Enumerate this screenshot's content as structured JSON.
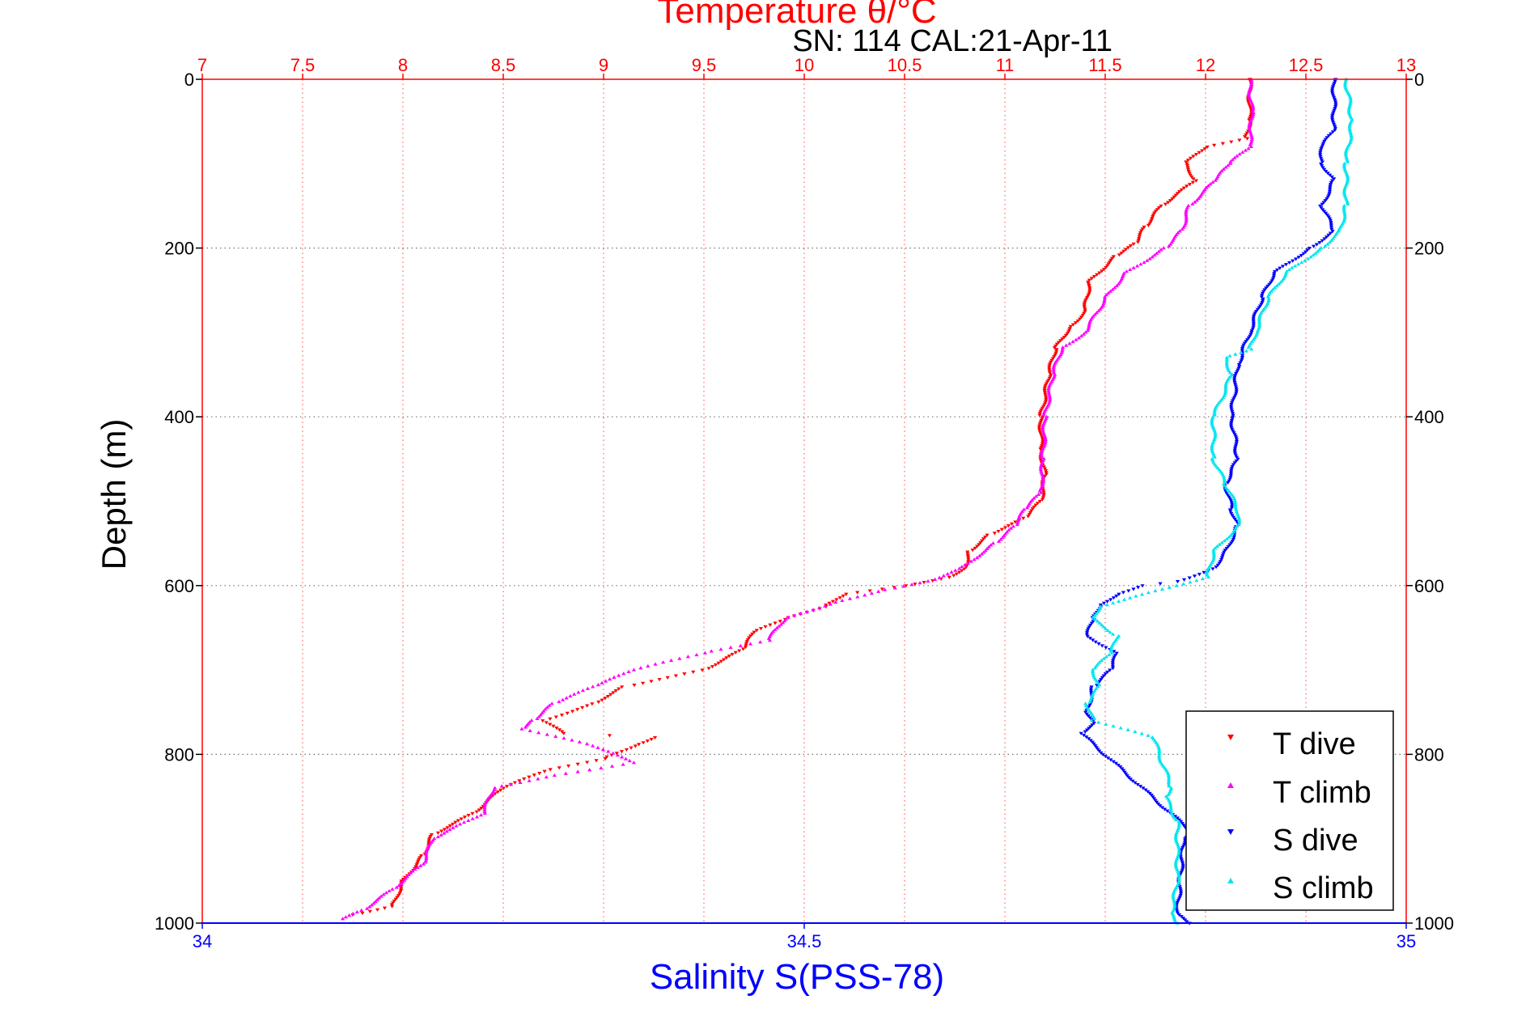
{
  "chart_data": {
    "type": "scatter",
    "title": "Temperature θ/°C",
    "subtitle": "SN: 114  CAL:21-Apr-11",
    "ylabel": "Depth (m)",
    "xlabel": "Salinity S(PSS-78)",
    "ylim": [
      0,
      1000
    ],
    "y_reversed": true,
    "y_ticks": [
      "0",
      "200",
      "400",
      "600",
      "800",
      "1000"
    ],
    "temperature_axis": {
      "position": "top",
      "range": [
        7,
        13
      ],
      "ticks": [
        "7",
        "7.5",
        "8",
        "8.5",
        "9",
        "9.5",
        "10",
        "10.5",
        "11",
        "11.5",
        "12",
        "12.5",
        "13"
      ],
      "color": "#ff0000"
    },
    "salinity_axis": {
      "position": "bottom",
      "range": [
        34,
        35
      ],
      "ticks": [
        "34",
        "34.5",
        "35"
      ],
      "color": "#0000ff"
    },
    "grid": true,
    "legend_position": "bottom-right",
    "series": [
      {
        "name": "T dive",
        "axis": "temperature",
        "color": "#ff0000",
        "marker": "triangle-down",
        "depth": [
          0,
          50,
          70,
          80,
          100,
          120,
          150,
          175,
          195,
          210,
          240,
          275,
          295,
          320,
          350,
          400,
          440,
          470,
          500,
          520,
          540,
          560,
          580,
          590,
          600,
          610,
          625,
          640,
          655,
          675,
          700,
          720,
          740,
          760,
          775,
          780,
          790,
          805,
          820,
          840,
          870,
          895,
          920,
          950,
          980,
          990
        ],
        "values": [
          12.22,
          12.22,
          12.2,
          12.0,
          11.9,
          11.95,
          11.78,
          11.7,
          11.65,
          11.55,
          11.42,
          11.4,
          11.32,
          11.25,
          11.22,
          11.18,
          11.18,
          11.2,
          11.18,
          11.1,
          10.92,
          10.82,
          10.8,
          10.72,
          10.5,
          10.2,
          10.1,
          9.9,
          9.75,
          9.7,
          9.5,
          9.1,
          8.95,
          8.7,
          8.8,
          9.25,
          9.15,
          9.0,
          8.7,
          8.5,
          8.35,
          8.15,
          8.1,
          8.0,
          7.95,
          7.75
        ]
      },
      {
        "name": "T climb",
        "axis": "temperature",
        "color": "#ff00ff",
        "marker": "triangle-up",
        "depth": [
          0,
          40,
          80,
          100,
          120,
          150,
          180,
          200,
          230,
          260,
          300,
          320,
          350,
          400,
          450,
          490,
          510,
          530,
          550,
          580,
          595,
          605,
          620,
          640,
          665,
          680,
          700,
          720,
          740,
          760,
          770,
          790,
          810,
          825,
          840,
          870,
          900,
          930,
          960,
          985,
          995
        ],
        "values": [
          12.22,
          12.23,
          12.22,
          12.12,
          12.05,
          11.92,
          11.88,
          11.8,
          11.6,
          11.5,
          11.4,
          11.28,
          11.24,
          11.2,
          11.19,
          11.18,
          11.1,
          11.05,
          10.95,
          10.78,
          10.62,
          10.4,
          10.15,
          9.9,
          9.82,
          9.5,
          9.15,
          8.95,
          8.75,
          8.65,
          8.6,
          8.95,
          9.15,
          8.75,
          8.45,
          8.4,
          8.15,
          8.1,
          7.95,
          7.8,
          7.7
        ]
      },
      {
        "name": "S dive",
        "axis": "salinity",
        "color": "#0000ff",
        "marker": "triangle-down",
        "depth": [
          0,
          60,
          80,
          100,
          120,
          150,
          180,
          200,
          230,
          260,
          300,
          340,
          400,
          450,
          480,
          510,
          530,
          560,
          580,
          595,
          600,
          610,
          625,
          640,
          660,
          680,
          700,
          720,
          750,
          765,
          775,
          890,
          900,
          990,
          1000
        ],
        "values": [
          34.94,
          34.94,
          34.93,
          34.93,
          34.94,
          34.93,
          34.94,
          34.92,
          34.89,
          34.88,
          34.87,
          34.86,
          34.855,
          34.86,
          34.85,
          34.855,
          34.86,
          34.85,
          34.84,
          34.81,
          34.78,
          34.76,
          34.745,
          34.74,
          34.735,
          34.76,
          34.755,
          34.74,
          34.735,
          34.74,
          34.73,
          34.82,
          34.815,
          34.81,
          34.82
        ]
      },
      {
        "name": "S climb",
        "axis": "salinity",
        "color": "#00e5ee",
        "marker": "triangle-up",
        "depth": [
          0,
          50,
          100,
          150,
          180,
          200,
          230,
          260,
          300,
          320,
          330,
          350,
          400,
          450,
          480,
          510,
          530,
          560,
          590,
          625,
          640,
          660,
          680,
          700,
          720,
          740,
          760,
          780,
          840,
          850,
          880,
          950,
          990,
          1000
        ],
        "values": [
          34.95,
          34.955,
          34.95,
          34.95,
          34.945,
          34.93,
          34.9,
          34.885,
          34.875,
          34.87,
          34.85,
          34.855,
          34.84,
          34.84,
          34.85,
          34.86,
          34.86,
          34.84,
          34.835,
          34.745,
          34.74,
          34.76,
          34.755,
          34.74,
          34.745,
          34.735,
          34.74,
          34.79,
          34.805,
          34.8,
          34.81,
          34.81,
          34.805,
          34.81
        ]
      }
    ]
  }
}
